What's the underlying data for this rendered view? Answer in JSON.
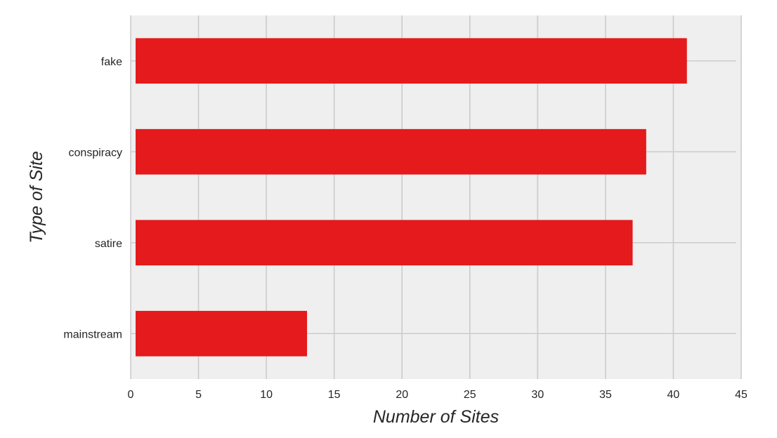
{
  "chart_data": {
    "type": "bar",
    "orientation": "horizontal",
    "categories": [
      "fake",
      "conspiracy",
      "satire",
      "mainstream"
    ],
    "values": [
      41,
      38,
      37,
      13
    ],
    "xlabel": "Number of Sites",
    "ylabel": "Type of Site",
    "xlim": [
      0,
      45
    ],
    "xticks": [
      0,
      5,
      10,
      15,
      20,
      25,
      30,
      35,
      40,
      45
    ],
    "grid": true,
    "legend": "none",
    "colors": {
      "bar": "#e41a1c",
      "background": "#efefef",
      "grid": "#cccccc",
      "text": "#262626"
    }
  }
}
